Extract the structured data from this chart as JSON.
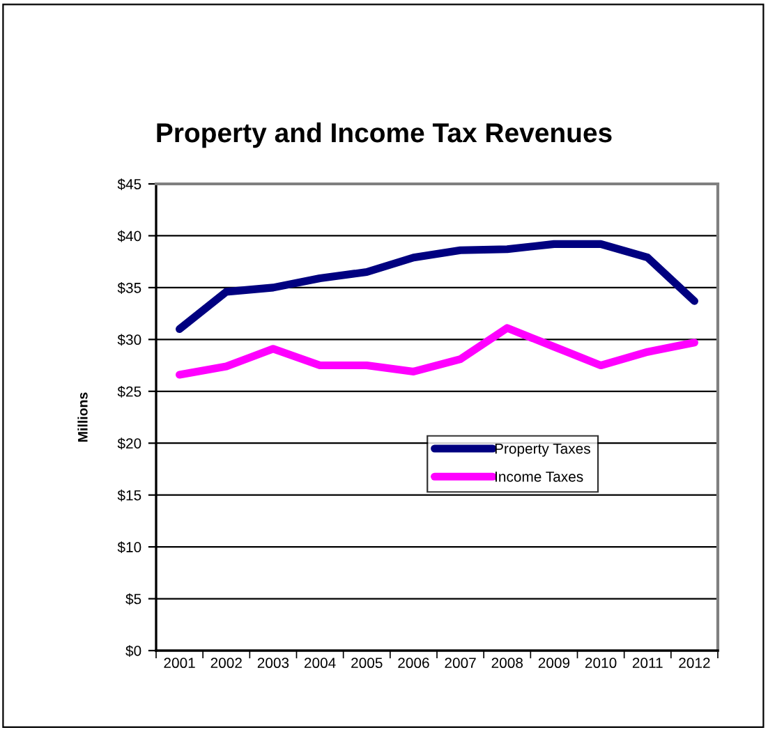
{
  "chart_data": {
    "type": "line",
    "title": "Property and Income Tax Revenues",
    "ylabel": "Millions",
    "categories": [
      "2001",
      "2002",
      "2003",
      "2004",
      "2005",
      "2006",
      "2007",
      "2008",
      "2009",
      "2010",
      "2011",
      "2012"
    ],
    "series": [
      {
        "name": "Property Taxes",
        "color": "#000080",
        "values": [
          31.0,
          34.6,
          35.0,
          35.9,
          36.5,
          37.9,
          38.6,
          38.7,
          39.2,
          39.2,
          37.9,
          33.7
        ]
      },
      {
        "name": "Income Taxes",
        "color": "#ff00ff",
        "values": [
          26.6,
          27.4,
          29.1,
          27.5,
          27.5,
          26.9,
          28.1,
          31.1,
          29.3,
          27.5,
          28.8,
          29.7
        ]
      }
    ],
    "ylim": [
      0,
      45
    ],
    "yticks": [
      {
        "value": 0,
        "label": "$0"
      },
      {
        "value": 5,
        "label": "$5"
      },
      {
        "value": 10,
        "label": "$10"
      },
      {
        "value": 15,
        "label": "$15"
      },
      {
        "value": 20,
        "label": "$20"
      },
      {
        "value": 25,
        "label": "$25"
      },
      {
        "value": 30,
        "label": "$30"
      },
      {
        "value": 35,
        "label": "$35"
      },
      {
        "value": 40,
        "label": "$40"
      },
      {
        "value": 45,
        "label": "$45"
      }
    ],
    "grid": "y",
    "legend": "right",
    "marker": "none",
    "line_style": "solid"
  }
}
